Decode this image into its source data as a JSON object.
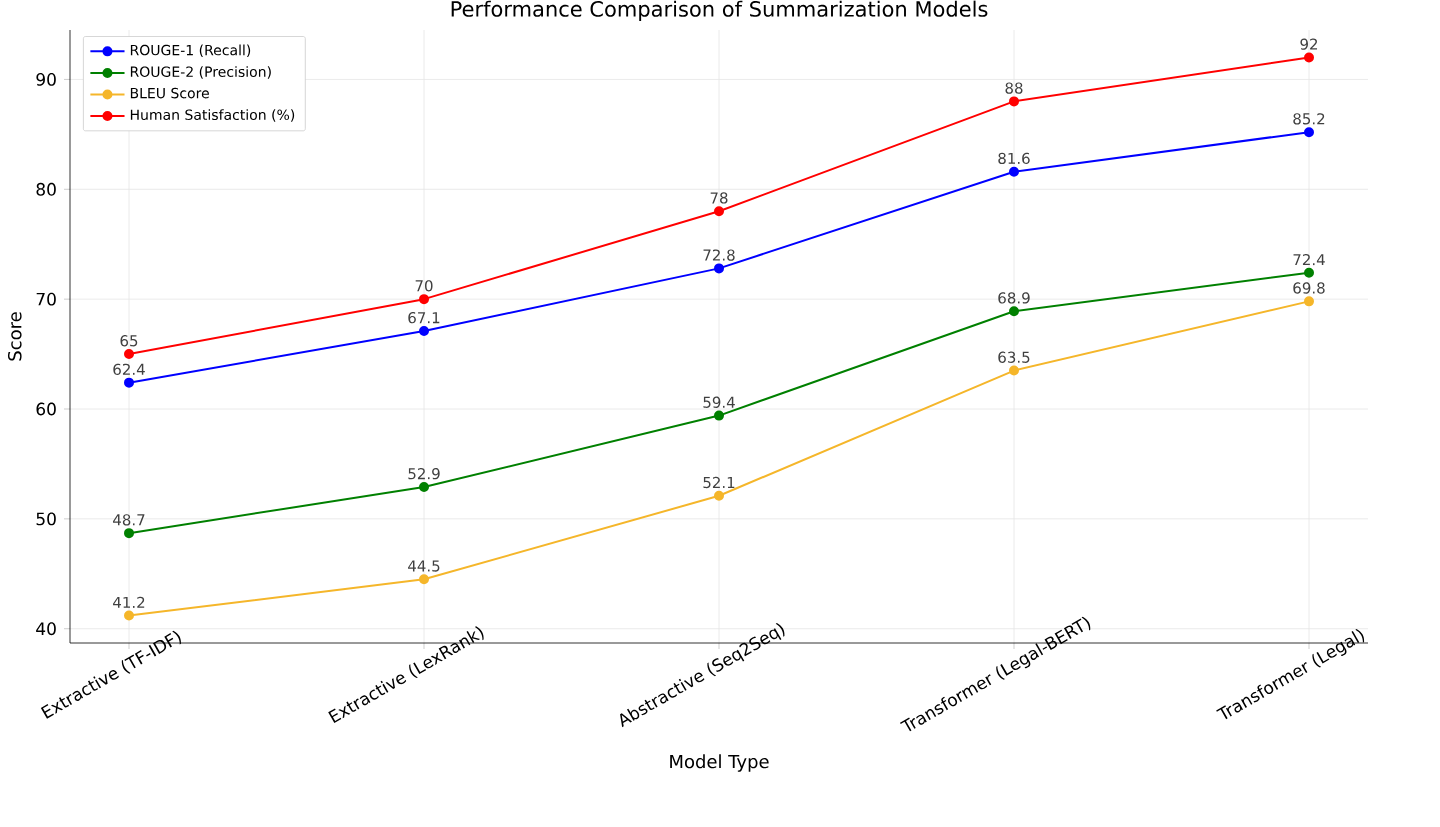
{
  "chart_data": {
    "type": "line",
    "title": "Performance Comparison of Summarization Models",
    "xlabel": "Model Type",
    "ylabel": "Score",
    "categories": [
      "Extractive (TF-IDF)",
      "Extractive (LexRank)",
      "Abstractive (Seq2Seq)",
      "Transformer (Legal-BERT)",
      "Transformer (Legal)"
    ],
    "series": [
      {
        "name": "ROUGE-1 (Recall)",
        "color": "#0000ff",
        "values": [
          62.4,
          67.1,
          72.8,
          81.6,
          85.2
        ]
      },
      {
        "name": "ROUGE-2 (Precision)",
        "color": "#008000",
        "values": [
          48.7,
          52.9,
          59.4,
          68.9,
          72.4
        ]
      },
      {
        "name": "BLEU Score",
        "color": "#f5b62a",
        "values": [
          41.2,
          44.5,
          52.1,
          63.5,
          69.8
        ]
      },
      {
        "name": "Human Satisfaction (%)",
        "color": "#ff0000",
        "values": [
          65,
          70,
          78,
          88,
          92
        ]
      }
    ],
    "ylim": [
      38.7,
      94.5
    ],
    "yticks": [
      40,
      50,
      60,
      70,
      80,
      90
    ],
    "grid": true,
    "legend": "top left",
    "marker": "circle",
    "line_style": "solid",
    "data_labels": true
  }
}
